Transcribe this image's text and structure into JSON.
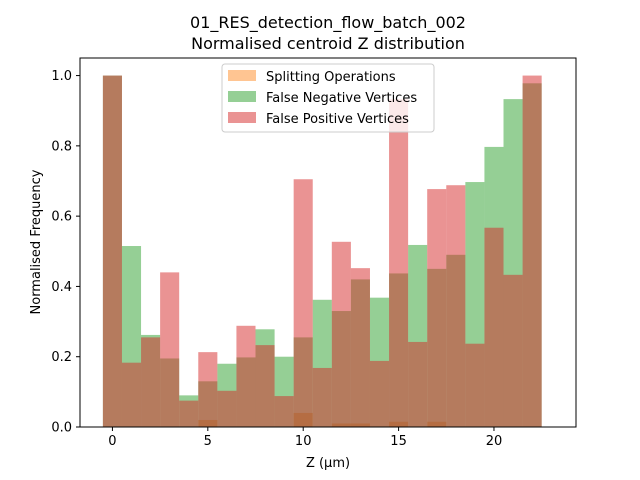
{
  "chart_data": {
    "type": "bar",
    "title": "01_RES_detection_flow_batch_002",
    "subtitle": "Normalised centroid Z distribution",
    "xlabel": "Z (μm)",
    "ylabel": "Normalised Frequency",
    "xlim": [
      -1.7,
      24.3
    ],
    "ylim": [
      0,
      1.05
    ],
    "xticks": [
      0,
      5,
      10,
      15,
      20
    ],
    "yticks": [
      0.0,
      0.2,
      0.4,
      0.6,
      0.8,
      1.0
    ],
    "ytick_labels": [
      "0.0",
      "0.2",
      "0.4",
      "0.6",
      "0.8",
      "1.0"
    ],
    "legend_position": "upper center",
    "bin_start": -0.5,
    "bin_width": 1.0,
    "series": [
      {
        "name": "Splitting Operations",
        "color": "#ff7f0e",
        "alpha": 0.45,
        "values": [
          0,
          0,
          0,
          0,
          0,
          0.02,
          0,
          0,
          0,
          0,
          0.04,
          0,
          0.01,
          0.01,
          0,
          0.015,
          0,
          0.015,
          0,
          0,
          0,
          0,
          0
        ]
      },
      {
        "name": "False Negative Vertices",
        "color": "#2ca02c",
        "alpha": 0.5,
        "values": [
          1.0,
          0.515,
          0.262,
          0.195,
          0.09,
          0.13,
          0.18,
          0.198,
          0.278,
          0.2,
          0.255,
          0.362,
          0.33,
          0.42,
          0.368,
          0.437,
          0.518,
          0.45,
          0.49,
          0.697,
          0.797,
          0.933,
          0.978
        ]
      },
      {
        "name": "False Positive Vertices",
        "color": "#d62728",
        "alpha": 0.5,
        "values": [
          1.0,
          0.183,
          0.255,
          0.44,
          0.075,
          0.213,
          0.103,
          0.288,
          0.233,
          0.088,
          0.705,
          0.168,
          0.527,
          0.452,
          0.188,
          0.933,
          0.242,
          0.677,
          0.688,
          0.237,
          0.567,
          0.433,
          1.0
        ]
      }
    ]
  }
}
